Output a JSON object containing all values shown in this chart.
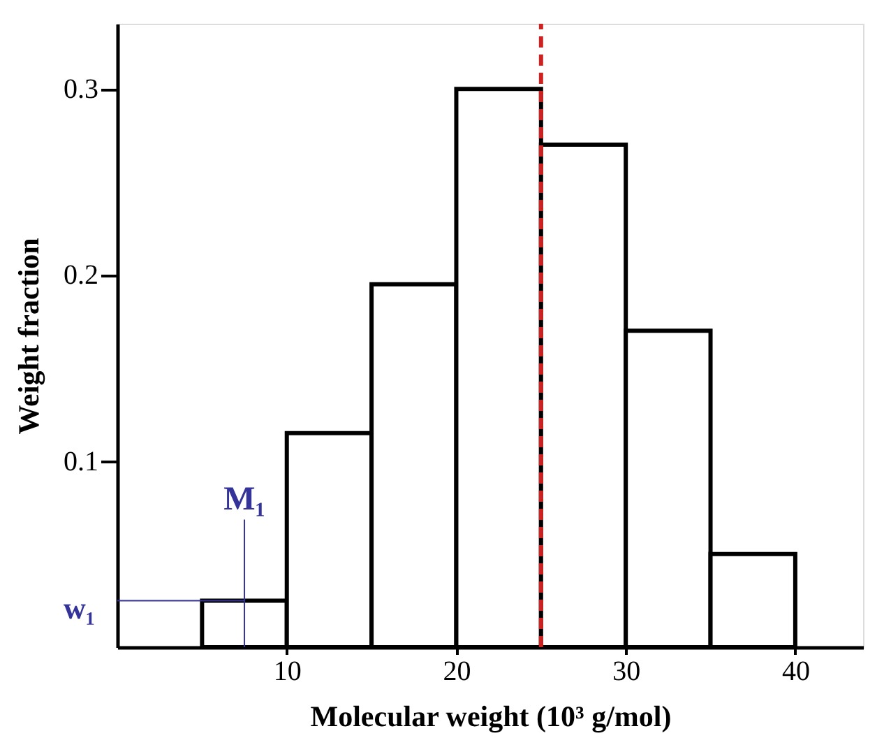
{
  "chart_data": {
    "type": "histogram",
    "xlabel": "Molecular weight (10³ g/mol)",
    "ylabel": "Weight fraction",
    "bins": [
      5,
      10,
      15,
      20,
      25,
      30,
      35,
      40
    ],
    "values": [
      0.025,
      0.115,
      0.195,
      0.3,
      0.27,
      0.17,
      0.05
    ],
    "color": "#000000",
    "xlim": [
      0,
      44
    ],
    "ylim": [
      0,
      0.335
    ],
    "xticks": [
      10,
      20,
      30,
      40
    ],
    "yticks": [
      0.1,
      0.2,
      0.3
    ],
    "ref_lines": [
      {
        "axis": "x",
        "value": 25,
        "color": "#cc2222",
        "line_style": "dashed"
      }
    ],
    "annotations": [
      {
        "text": "M₁",
        "x": 7.5,
        "y": 0.025
      },
      {
        "text": "w₁",
        "x": 7.5,
        "y": 0.025
      }
    ],
    "grid": false
  }
}
